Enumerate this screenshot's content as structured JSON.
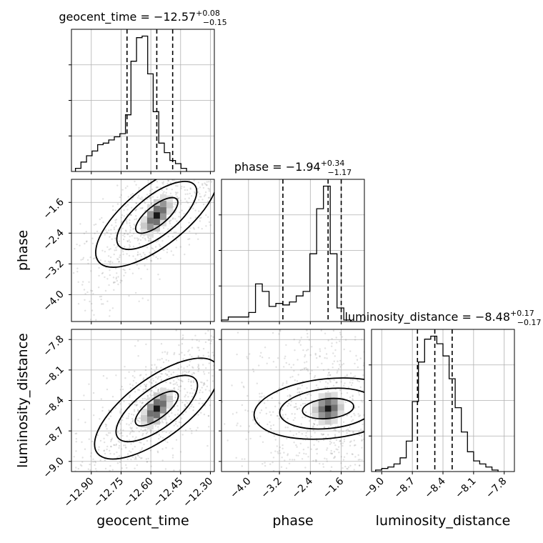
{
  "chart_data": {
    "type": "corner",
    "parameters": [
      {
        "name": "geocent_time",
        "median": "−12.57",
        "plus": "+0.08",
        "minus": "−0.15",
        "range": [
          -13.0,
          -12.28
        ],
        "ticks": [
          -12.9,
          -12.75,
          -12.6,
          -12.45,
          -12.3
        ],
        "tick_labels": [
          "−12.90",
          "−12.75",
          "−12.60",
          "−12.45",
          "−12.30"
        ],
        "quantiles": [
          -12.72,
          -12.57,
          -12.49
        ],
        "hist_edges_start": -12.98,
        "hist_bin": 0.028,
        "hist_counts": [
          2,
          6,
          10,
          13,
          17,
          18,
          20,
          22,
          24,
          36,
          70,
          85,
          86,
          62,
          38,
          18,
          12,
          7,
          5,
          2
        ]
      },
      {
        "name": "phase",
        "median": "−1.94",
        "plus": "+0.34",
        "minus": "−1.17",
        "range": [
          -4.7,
          -1.0
        ],
        "ticks": [
          -4.0,
          -3.2,
          -2.4,
          -1.6
        ],
        "tick_labels": [
          "−4.0",
          "−3.2",
          "−2.4",
          "−1.6"
        ],
        "quantiles": [
          -3.11,
          -1.94,
          -1.6
        ],
        "hist_edges_start": -4.7,
        "hist_bin": 0.176,
        "hist_counts": [
          1,
          3,
          3,
          3,
          6,
          25,
          20,
          10,
          12,
          11,
          13,
          17,
          20,
          45,
          75,
          90,
          45,
          9,
          1,
          0,
          0
        ]
      },
      {
        "name": "luminosity_distance",
        "median": "−8.48",
        "plus": "+0.17",
        "minus": "−0.17",
        "range": [
          -9.1,
          -7.7
        ],
        "ticks": [
          -9.0,
          -8.7,
          -8.4,
          -8.1,
          -7.8
        ],
        "tick_labels": [
          "−9.0",
          "−8.7",
          "−8.4",
          "−8.1",
          "−7.8"
        ],
        "quantiles": [
          -8.65,
          -8.48,
          -8.31
        ],
        "hist_edges_start": -9.06,
        "hist_bin": 0.06,
        "hist_counts": [
          1,
          2,
          3,
          5,
          9,
          20,
          46,
          72,
          87,
          89,
          84,
          76,
          61,
          42,
          26,
          13,
          7,
          5,
          3,
          1
        ]
      }
    ],
    "pairs": [
      {
        "x": "geocent_time",
        "y": "phase",
        "corr": 0.8
      },
      {
        "x": "geocent_time",
        "y": "luminosity_distance",
        "corr": 0.75
      },
      {
        "x": "phase",
        "y": "luminosity_distance",
        "corr": 0.1
      }
    ],
    "axis_labels": {
      "x": [
        "geocent_time",
        "phase",
        "luminosity_distance"
      ],
      "y": [
        "phase",
        "luminosity_distance"
      ]
    }
  }
}
